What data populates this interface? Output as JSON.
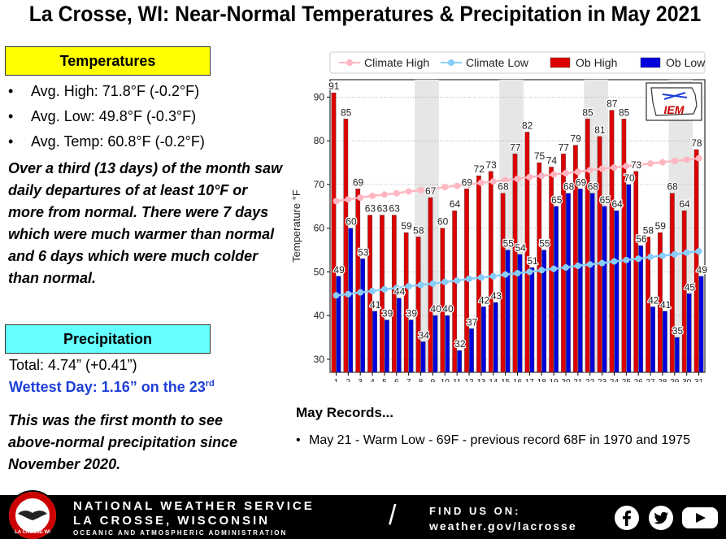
{
  "title": "La Crosse, WI:  Near-Normal Temperatures & Precipitation in May 2021",
  "temperatures": {
    "header": "Temperatures",
    "items": [
      "Avg. High:  71.8°F (-0.2°F)",
      "Avg. Low:  49.8°F (-0.3°F)",
      "Avg. Temp:  60.8°F (-0.2°F)"
    ],
    "paragraph": "Over a third (13 days) of the month saw daily departures of at least 10°F or more from normal. There were 7 days which were much warmer than normal and 6 days which were much colder than normal."
  },
  "precipitation": {
    "header": "Precipitation",
    "total": "Total:  4.74” (+0.41”)",
    "wettest": "Wettest Day: 1.16” on the 23",
    "wettest_sup": "rd",
    "paragraph": "This was the first month to see above-normal precipitation since November 2020."
  },
  "records": {
    "title": "May Records...",
    "items": [
      "May 21 - Warm Low - 69F - previous record 68F in 1970 and 1975"
    ]
  },
  "footer": {
    "name": "NATIONAL WEATHER SERVICE",
    "city": "LA CROSSE, WISCONSIN",
    "agency": "OCEANIC AND ATMOSPHERIC ADMINISTRATION",
    "find": "FIND US ON:",
    "url": "weather.gov/lacrosse",
    "logo_text": "LA CROSSE WI"
  },
  "colors": {
    "ob_high": "#dd0000",
    "ob_low": "#0000dd",
    "climate_high": "#ffb6c1",
    "climate_low": "#87cefa",
    "temp_header": "#ffff00",
    "precip_header": "#66ffff",
    "wettest": "#1f3fd6"
  },
  "chart_data": {
    "type": "bar",
    "ylabel": "Temperature  °F",
    "ylim": [
      27,
      94
    ],
    "yticks": [
      30,
      40,
      50,
      60,
      70,
      80,
      90
    ],
    "legend_position": "top",
    "logo": "IEM",
    "categories": [
      "1",
      "2",
      "3",
      "4",
      "5",
      "6",
      "7",
      "8",
      "9",
      "10",
      "11",
      "12",
      "13",
      "14",
      "15",
      "16",
      "17",
      "18",
      "19",
      "20",
      "21",
      "22",
      "23",
      "24",
      "25",
      "26",
      "27",
      "28",
      "29",
      "30",
      "31"
    ],
    "series": [
      {
        "name": "Climate High",
        "kind": "line",
        "values": [
          66.2,
          66.6,
          67.0,
          67.4,
          67.7,
          68.0,
          68.4,
          68.7,
          69.0,
          69.4,
          69.7,
          70.0,
          70.4,
          70.7,
          71.0,
          71.3,
          71.7,
          72.0,
          72.3,
          72.6,
          72.9,
          73.3,
          73.6,
          73.9,
          74.2,
          74.5,
          74.8,
          75.1,
          75.4,
          75.7,
          76.0
        ]
      },
      {
        "name": "Climate Low",
        "kind": "line",
        "values": [
          44.6,
          44.9,
          45.3,
          45.6,
          46.0,
          46.3,
          46.7,
          47.0,
          47.3,
          47.7,
          48.0,
          48.4,
          48.7,
          49.0,
          49.4,
          49.7,
          50.0,
          50.4,
          50.7,
          51.0,
          51.4,
          51.7,
          52.0,
          52.4,
          52.7,
          53.0,
          53.4,
          53.7,
          54.0,
          54.4,
          54.7
        ]
      },
      {
        "name": "Ob High",
        "kind": "bar",
        "values": [
          91,
          85,
          69,
          63,
          63,
          63,
          59,
          58,
          67,
          60,
          64,
          69,
          72,
          73,
          68,
          77,
          82,
          75,
          74,
          77,
          79,
          85,
          81,
          87,
          85,
          73,
          58,
          59,
          68,
          64,
          78
        ]
      },
      {
        "name": "Ob Low",
        "kind": "bar",
        "values": [
          49,
          60,
          53,
          41,
          39,
          44,
          39,
          34,
          40,
          40,
          32,
          37,
          42,
          43,
          55,
          54,
          51,
          55,
          65,
          68,
          69,
          68,
          65,
          64,
          70,
          56,
          42,
          41,
          35,
          45,
          49
        ]
      }
    ]
  }
}
